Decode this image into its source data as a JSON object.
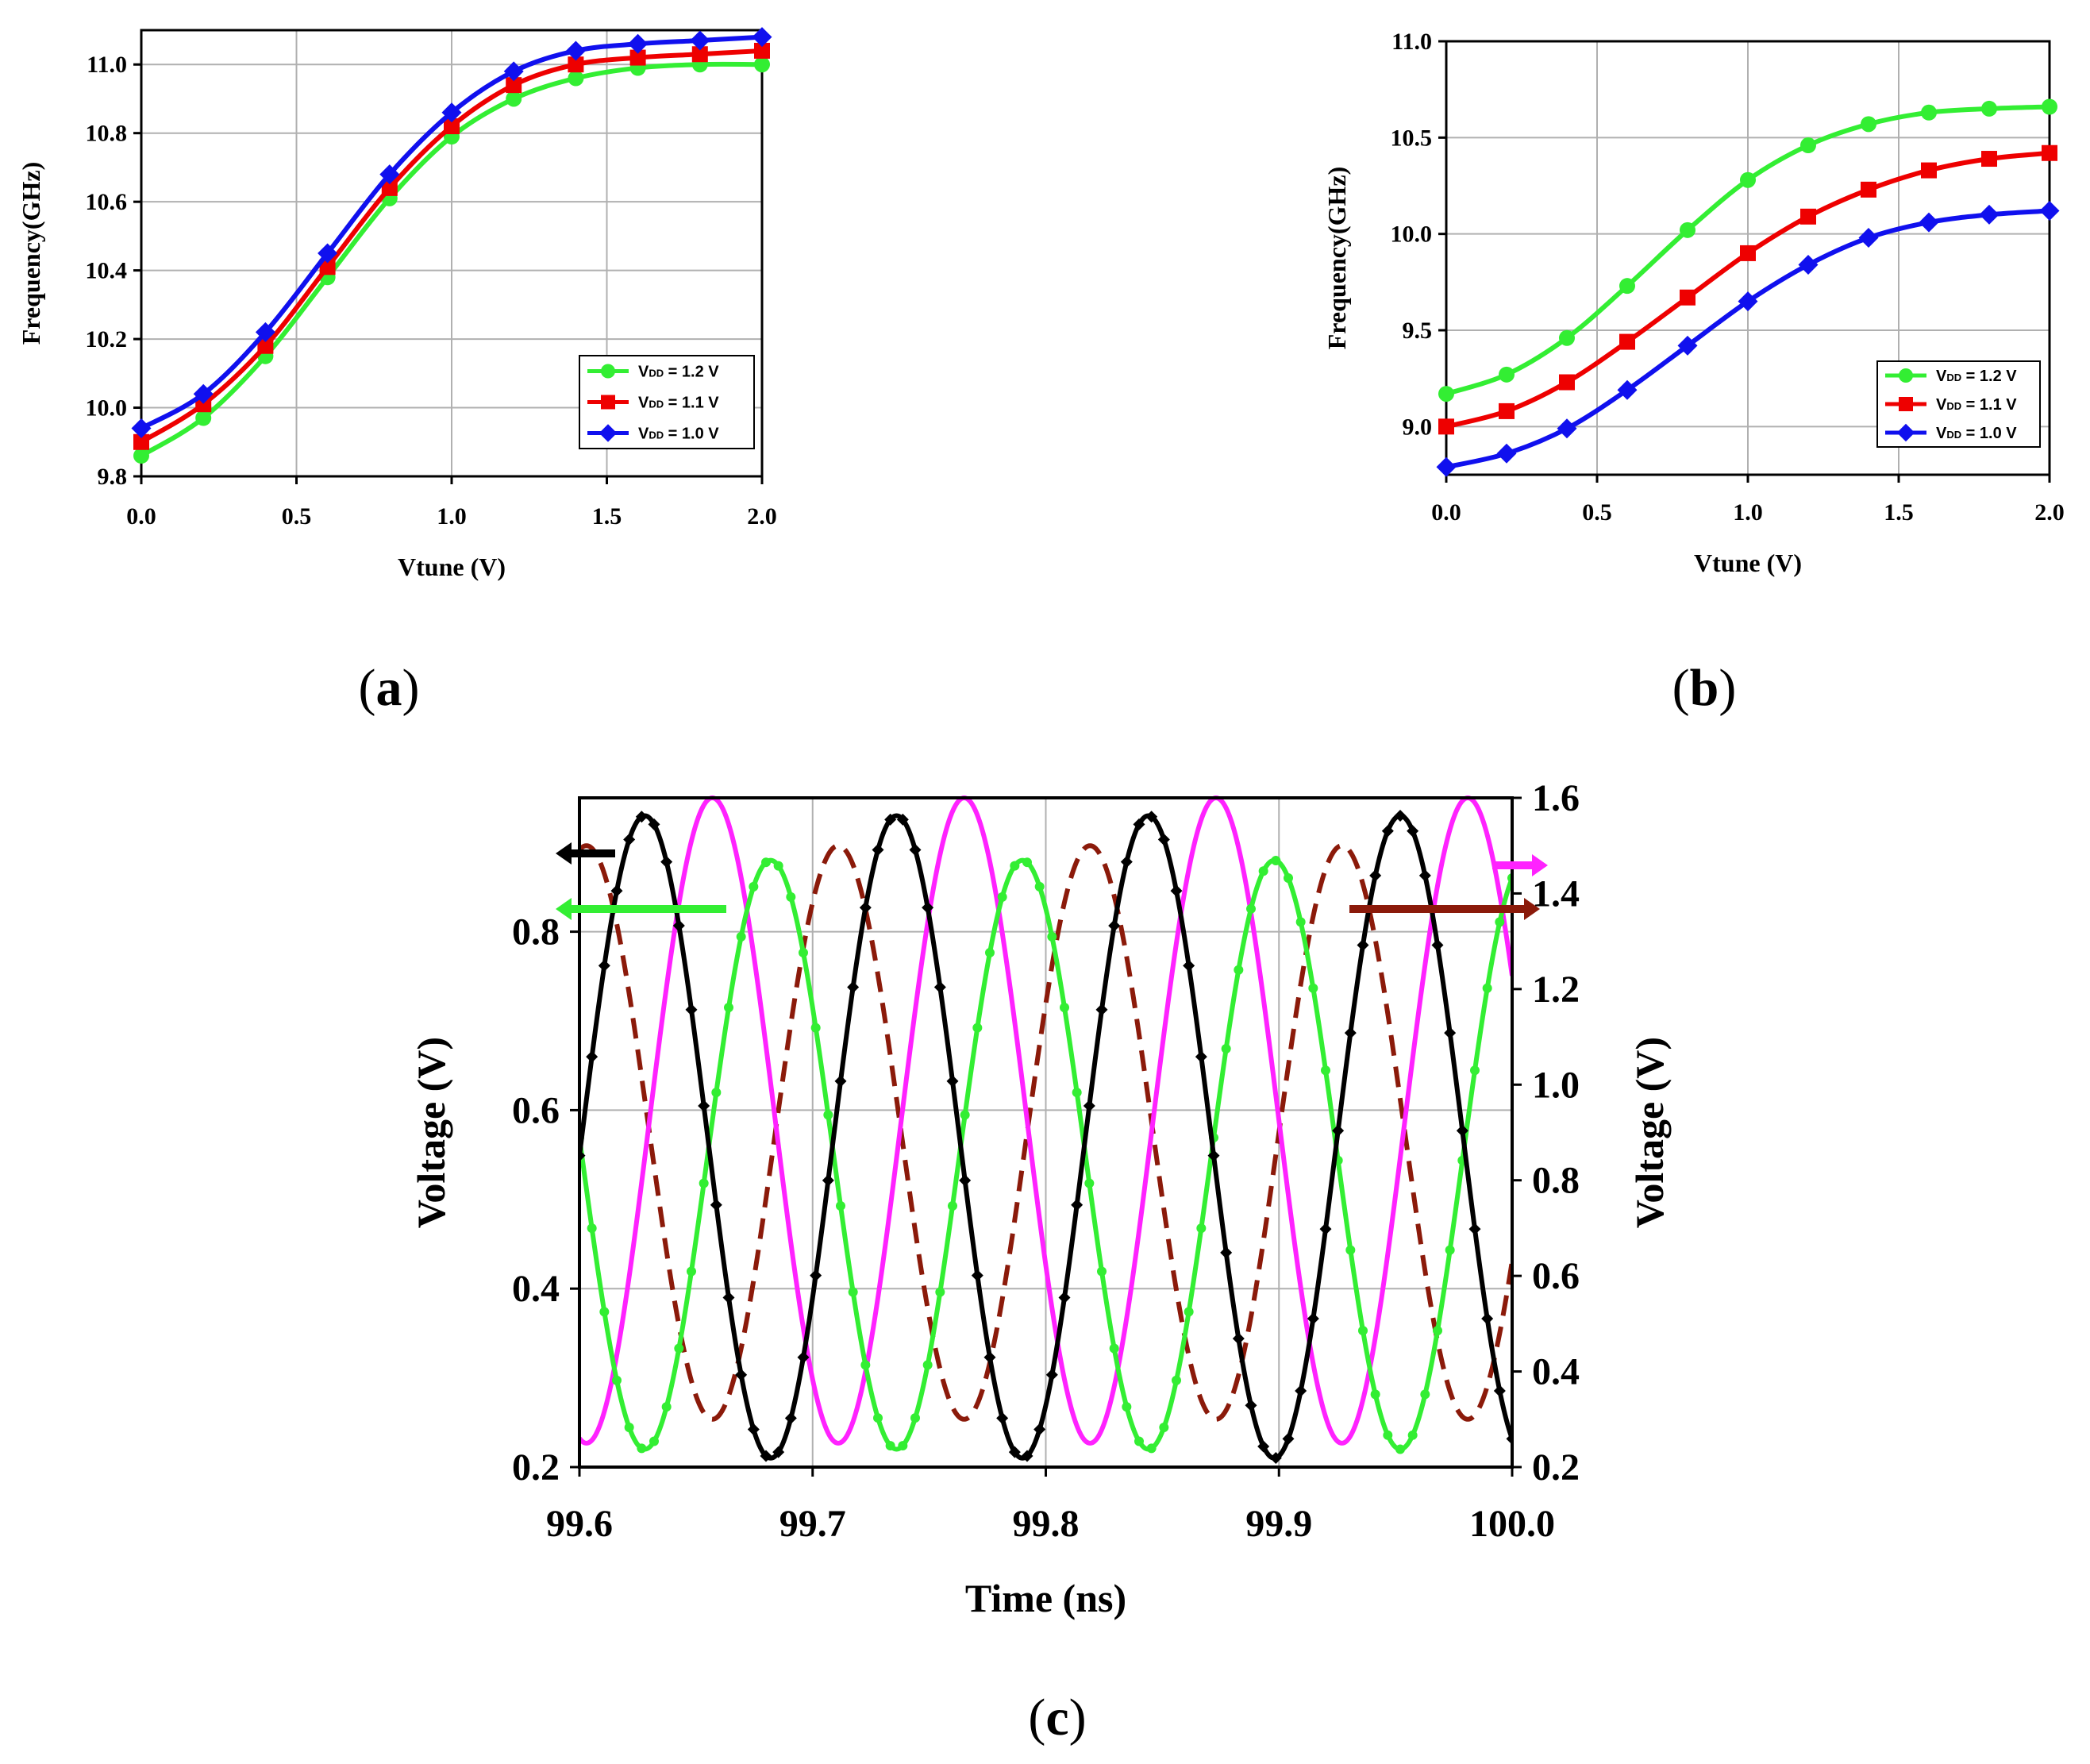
{
  "figure": {
    "panels": [
      {
        "id": "a",
        "label_prefix": "(",
        "label_letter": "a",
        "label_suffix": ")"
      },
      {
        "id": "b",
        "label_prefix": "(",
        "label_letter": "b",
        "label_suffix": ")"
      },
      {
        "id": "c",
        "label_prefix": "(",
        "label_letter": "c",
        "label_suffix": ")"
      }
    ]
  },
  "colors": {
    "green": "#33ee33",
    "red": "#ee0000",
    "blue": "#1010ee",
    "black": "#000000",
    "magenta": "#ff22ff",
    "brown": "#8b1a0a",
    "grid": "#b0b0b0"
  },
  "chart_data": [
    {
      "id": "a",
      "type": "line",
      "xlabel": "Vtune (V)",
      "ylabel": "Frequency(GHz)",
      "xlim": [
        0,
        2
      ],
      "ylim": [
        9.8,
        11.1
      ],
      "xticks": [
        "0.0",
        "0.5",
        "1.0",
        "1.5",
        "2.0"
      ],
      "xtick_values": [
        0,
        0.5,
        1,
        1.5,
        2
      ],
      "yticks": [
        "9.8",
        "10.0",
        "10.2",
        "10.4",
        "10.6",
        "10.8",
        "11.0"
      ],
      "ytick_values": [
        9.8,
        10.0,
        10.2,
        10.4,
        10.6,
        10.8,
        11.0
      ],
      "grid": true,
      "legend_position": "bottom-right",
      "x": [
        0,
        0.2,
        0.4,
        0.6,
        0.8,
        1.0,
        1.2,
        1.4,
        1.6,
        1.8,
        2.0
      ],
      "series": [
        {
          "name": "VDD = 1.2 V",
          "legend_main": "V",
          "legend_sub": "DD",
          "legend_rest": " = 1.2 V",
          "color": "green",
          "marker": "circle",
          "values": [
            9.86,
            9.97,
            10.15,
            10.38,
            10.61,
            10.79,
            10.9,
            10.96,
            10.99,
            11.0,
            11.0
          ]
        },
        {
          "name": "VDD = 1.1 V",
          "legend_main": "V",
          "legend_sub": "DD",
          "legend_rest": " = 1.1 V",
          "color": "red",
          "marker": "square",
          "values": [
            9.9,
            10.01,
            10.18,
            10.41,
            10.64,
            10.82,
            10.94,
            11.0,
            11.02,
            11.03,
            11.04
          ]
        },
        {
          "name": "VDD = 1.0 V",
          "legend_main": "V",
          "legend_sub": "DD",
          "legend_rest": " = 1.0 V",
          "color": "blue",
          "marker": "diamond",
          "values": [
            9.94,
            10.04,
            10.22,
            10.45,
            10.68,
            10.86,
            10.98,
            11.04,
            11.06,
            11.07,
            11.08
          ]
        }
      ]
    },
    {
      "id": "b",
      "type": "line",
      "xlabel": "Vtune (V)",
      "ylabel": "Frequency(GHz)",
      "xlim": [
        0,
        2
      ],
      "ylim": [
        8.75,
        11.0
      ],
      "xticks": [
        "0.0",
        "0.5",
        "1.0",
        "1.5",
        "2.0"
      ],
      "xtick_values": [
        0,
        0.5,
        1,
        1.5,
        2
      ],
      "yticks": [
        "9.0",
        "9.5",
        "10.0",
        "10.5",
        "11.0"
      ],
      "ytick_values": [
        9.0,
        9.5,
        10.0,
        10.5,
        11.0
      ],
      "grid": true,
      "legend_position": "bottom-right",
      "x": [
        0,
        0.2,
        0.4,
        0.6,
        0.8,
        1.0,
        1.2,
        1.4,
        1.6,
        1.8,
        2.0
      ],
      "series": [
        {
          "name": "VDD = 1.2 V",
          "legend_main": "V",
          "legend_sub": "DD",
          "legend_rest": " = 1.2 V",
          "color": "green",
          "marker": "circle",
          "values": [
            9.17,
            9.27,
            9.46,
            9.73,
            10.02,
            10.28,
            10.46,
            10.57,
            10.63,
            10.65,
            10.66
          ]
        },
        {
          "name": "VDD = 1.1 V",
          "legend_main": "V",
          "legend_sub": "DD",
          "legend_rest": " = 1.1 V",
          "color": "red",
          "marker": "square",
          "values": [
            9.0,
            9.08,
            9.23,
            9.44,
            9.67,
            9.9,
            10.09,
            10.23,
            10.33,
            10.39,
            10.42
          ]
        },
        {
          "name": "VDD = 1.0 V",
          "legend_main": "V",
          "legend_sub": "DD",
          "legend_rest": " = 1.0 V",
          "color": "blue",
          "marker": "diamond",
          "values": [
            8.79,
            8.86,
            8.99,
            9.19,
            9.42,
            9.65,
            9.84,
            9.98,
            10.06,
            10.1,
            10.12
          ]
        }
      ]
    },
    {
      "id": "c",
      "type": "line",
      "xlabel": "Time (ns)",
      "ylabel_left": "Voltage (V)",
      "ylabel_right": "Voltage (V)",
      "xlim": [
        99.6,
        100.0
      ],
      "ylim_left": [
        0.2,
        0.95
      ],
      "ylim_right": [
        0.2,
        1.6
      ],
      "xticks": [
        "99.6",
        "99.7",
        "99.8",
        "99.9",
        "100.0"
      ],
      "xtick_values": [
        99.6,
        99.7,
        99.8,
        99.9,
        100.0
      ],
      "yticks_left": [
        "0.2",
        "0.4",
        "0.6",
        "0.8"
      ],
      "ytick_values_left": [
        0.2,
        0.4,
        0.6,
        0.8
      ],
      "yticks_right": [
        "0.2",
        "0.4",
        "0.6",
        "0.8",
        "1.0",
        "1.2",
        "1.4",
        "1.6"
      ],
      "ytick_values_right": [
        0.2,
        0.4,
        0.6,
        0.8,
        1.0,
        1.2,
        1.4,
        1.6
      ],
      "grid": true,
      "series": [
        {
          "name": "left axis black (diamond markers)",
          "axis": "left",
          "color": "black",
          "marker": "diamond",
          "style": "solid",
          "min": 0.21,
          "max": 0.93,
          "period_ns": 0.108,
          "peak_time_ns": 99.628
        },
        {
          "name": "left axis green (circle markers)",
          "axis": "left",
          "color": "green",
          "marker": "circle",
          "style": "solid",
          "min": 0.22,
          "max": 0.88,
          "period_ns": 0.108,
          "peak_time_ns": 99.682
        },
        {
          "name": "right axis magenta",
          "axis": "right",
          "color": "magenta",
          "marker": "none",
          "style": "solid",
          "min": 0.25,
          "max": 1.6,
          "period_ns": 0.108,
          "peak_time_ns": 99.657
        },
        {
          "name": "right axis brown dashed",
          "axis": "right",
          "color": "brown",
          "marker": "none",
          "style": "dashed",
          "min": 0.3,
          "max": 1.5,
          "period_ns": 0.108,
          "peak_time_ns": 99.603
        }
      ],
      "arrows": [
        {
          "color": "black",
          "direction": "left",
          "axis": "left"
        },
        {
          "color": "green",
          "direction": "left",
          "axis": "left"
        },
        {
          "color": "magenta",
          "direction": "right",
          "axis": "right"
        },
        {
          "color": "brown",
          "direction": "right",
          "axis": "right"
        }
      ]
    }
  ]
}
